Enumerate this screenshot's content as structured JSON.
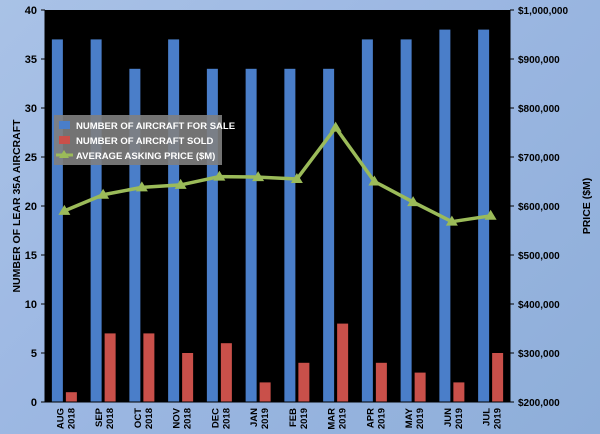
{
  "chart_data": {
    "type": "bar",
    "categories": [
      [
        "AUG",
        "2018"
      ],
      [
        "SEP",
        "2018"
      ],
      [
        "OCT",
        "2018"
      ],
      [
        "NOV",
        "2018"
      ],
      [
        "DEC",
        "2018"
      ],
      [
        "JAN",
        "2019"
      ],
      [
        "FEB",
        "2019"
      ],
      [
        "MAR",
        "2019"
      ],
      [
        "APR",
        "2019"
      ],
      [
        "MAY",
        "2019"
      ],
      [
        "JUN",
        "2019"
      ],
      [
        "JUL",
        "2019"
      ]
    ],
    "series": [
      {
        "name": "NUMBER OF AIRCRAFT FOR SALE",
        "type": "bar",
        "axis": "left",
        "color": "#4a7ec9",
        "values": [
          37,
          37,
          34,
          37,
          34,
          34,
          34,
          34,
          37,
          37,
          38,
          38
        ]
      },
      {
        "name": "NUMBER OF AIRCRAFT SOLD",
        "type": "bar",
        "axis": "left",
        "color": "#c9504a",
        "values": [
          1,
          7,
          7,
          5,
          6,
          2,
          4,
          8,
          4,
          3,
          2,
          5
        ]
      },
      {
        "name": "AVERAGE ASKING PRICE ($M)",
        "type": "line",
        "axis": "right",
        "color": "#9bbb59",
        "values": [
          590000,
          623000,
          638000,
          643000,
          660000,
          659000,
          655000,
          760000,
          650000,
          608000,
          568000,
          580000
        ]
      }
    ],
    "ylabel": "NUMBER OF LEAR 35A AIRCRAFT",
    "y2label": "PRICE ($M)",
    "ylim": [
      0,
      40
    ],
    "y2lim": [
      200000,
      1000000
    ],
    "yticks": [
      "0",
      "5",
      "10",
      "15",
      "20",
      "25",
      "30",
      "35",
      "40"
    ],
    "y2ticks": [
      "$200,000",
      "$300,000",
      "$400,000",
      "$500,000",
      "$600,000",
      "$700,000",
      "$800,000",
      "$900,000",
      "$1,000,000"
    ],
    "grid": false,
    "legend": "upper-left inside plot",
    "plot_background": "#000000"
  }
}
